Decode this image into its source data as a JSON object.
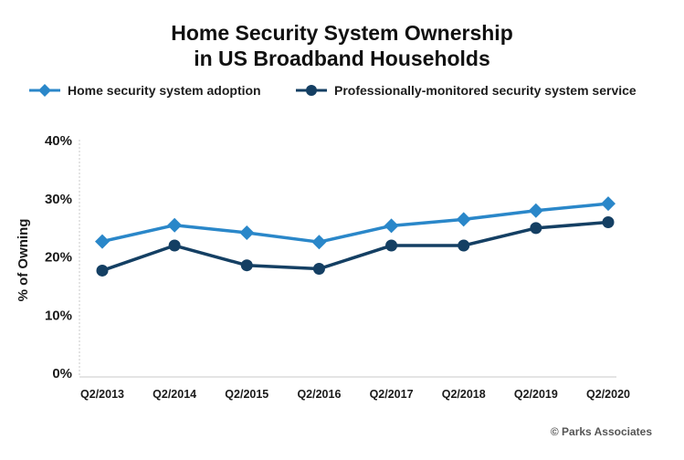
{
  "chart_data": {
    "type": "line",
    "title": "Home Security System Ownership in US Broadband Households",
    "title_lines": [
      "Home Security System Ownership",
      "in US Broadband Households"
    ],
    "ylabel": "% of Owning",
    "xlabel": "",
    "categories": [
      "Q2/2013",
      "Q2/2014",
      "Q2/2015",
      "Q2/2016",
      "Q2/2017",
      "Q2/2018",
      "Q2/2019",
      "Q2/2020"
    ],
    "ylim": [
      0,
      40
    ],
    "yticks": [
      0,
      10,
      20,
      30,
      40
    ],
    "ytick_labels": [
      "0%",
      "10%",
      "20%",
      "30%",
      "40%"
    ],
    "grid": false,
    "legend_position": "top",
    "series": [
      {
        "name": "Home security system adoption",
        "values": [
          22.5,
          25.3,
          24,
          22.4,
          25.2,
          26.3,
          27.8,
          29
        ],
        "color": "#2a87c9",
        "marker": "diamond"
      },
      {
        "name": "Professionally-monitored security system service",
        "values": [
          17.5,
          21.8,
          18.4,
          17.8,
          21.8,
          21.8,
          24.8,
          25.8
        ],
        "color": "#143f63",
        "marker": "circle"
      }
    ]
  },
  "source": "© Parks Associates"
}
